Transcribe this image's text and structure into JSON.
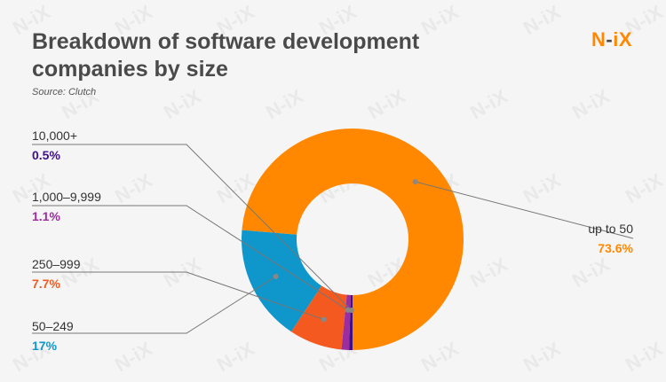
{
  "header": {
    "title": "Breakdown of software development companies by size",
    "source": "Source: Clutch"
  },
  "logo": {
    "brand": "N-iX",
    "part_n": "N",
    "part_dash": "-",
    "part_ix": "iX"
  },
  "colors": {
    "background": "#f5f5f5",
    "title": "#4a4a4a",
    "brand_orange": "#ff8800",
    "leader_line": "#777777"
  },
  "chart_data": {
    "type": "pie",
    "style": "donut",
    "title": "Breakdown of software development companies by size",
    "source": "Source: Clutch",
    "categories": [
      "up to 50",
      "50–249",
      "250–999",
      "1,000–9,999",
      "10,000+"
    ],
    "values": [
      73.6,
      17,
      7.7,
      1.1,
      0.5
    ],
    "value_labels": [
      "73.6%",
      "17%",
      "7.7%",
      "1.1%",
      "0.5%"
    ],
    "colors": [
      "#ff8800",
      "#0f97cb",
      "#f45a1f",
      "#9b2d9f",
      "#3f0f8a"
    ],
    "legend": "none"
  }
}
